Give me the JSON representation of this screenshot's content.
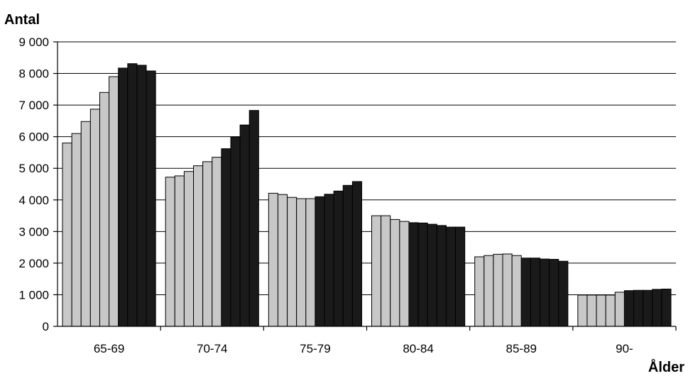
{
  "chart_data": {
    "type": "bar",
    "ylabel": "Antal",
    "xlabel": "Ålder",
    "ylim": [
      0,
      9000
    ],
    "yticks": [
      0,
      1000,
      2000,
      3000,
      4000,
      5000,
      6000,
      7000,
      8000,
      9000
    ],
    "ytick_labels": [
      "0",
      "1 000",
      "2 000",
      "3 000",
      "4 000",
      "5 000",
      "6 000",
      "7 000",
      "8 000",
      "9 000"
    ],
    "grid": true,
    "legend": "none",
    "colors": {
      "light": "#c8c8c8",
      "dark": "#1a1a1a"
    },
    "categories": [
      "65-69",
      "70-74",
      "75-79",
      "80-84",
      "85-89",
      "90-"
    ],
    "series_styles": [
      "light",
      "light",
      "light",
      "light",
      "light",
      "light",
      "dark",
      "dark",
      "dark",
      "dark",
      "dark",
      "dark",
      "dark"
    ],
    "values": [
      [
        5800,
        6100,
        6480,
        6870,
        7400,
        7900,
        8170,
        8310,
        8260,
        8080
      ],
      [
        4720,
        4760,
        4900,
        5080,
        5210,
        5350,
        5620,
        5980,
        6370,
        6830
      ],
      [
        4210,
        4170,
        4080,
        4040,
        4040,
        4100,
        4180,
        4280,
        4460,
        4580
      ],
      [
        3500,
        3500,
        3380,
        3320,
        3280,
        3270,
        3230,
        3190,
        3140,
        3140
      ],
      [
        2200,
        2240,
        2280,
        2290,
        2240,
        2160,
        2160,
        2130,
        2120,
        2060
      ],
      [
        990,
        990,
        990,
        990,
        1080,
        1130,
        1140,
        1140,
        1170,
        1180
      ]
    ],
    "light_count": [
      6,
      6,
      5,
      4,
      5,
      5
    ]
  }
}
